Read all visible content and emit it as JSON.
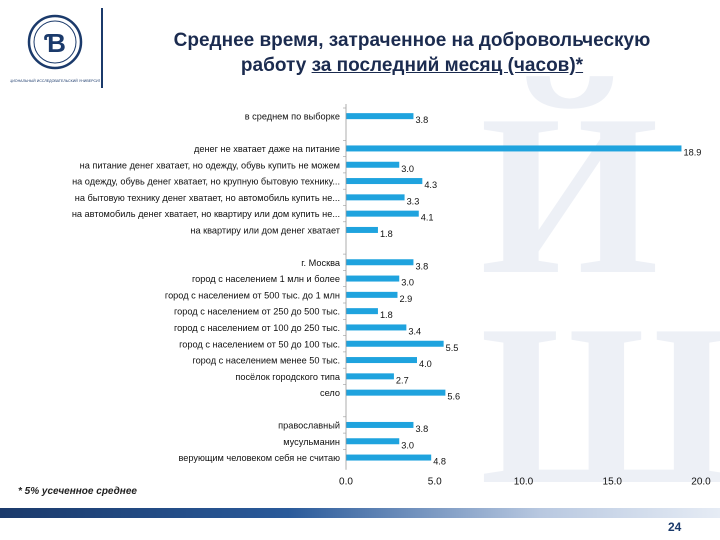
{
  "header": {
    "title_line1": "Среднее время, затраченное на добровольческую",
    "title_line2_plain": "работу ",
    "title_line2_underlined": "за последний месяц (часов)*",
    "logo_text": "НАЦИОНАЛЬНЫЙ ИССЛЕДОВАТЕЛЬСКИЙ УНИВЕРСИТЕТ"
  },
  "footnote": "* 5% усеченное среднее",
  "page_number": "24",
  "colors": {
    "bar": "#1fa3de",
    "title": "#1b2b4f",
    "brand": "#1b3a6b"
  },
  "chart_data": {
    "type": "bar",
    "orientation": "horizontal",
    "xlim": [
      0,
      20
    ],
    "x_ticks": [
      "0.0",
      "5.0",
      "10.0",
      "15.0",
      "20.0"
    ],
    "grid": false,
    "groups": [
      {
        "items": [
          {
            "label": "в среднем по выборке",
            "value": 3.8,
            "value_label": "3.8"
          }
        ]
      },
      {
        "items": [
          {
            "label": "денег не хватает даже на питание",
            "value": 18.9,
            "value_label": "18.9"
          },
          {
            "label": "на питание денег хватает, но одежду, обувь купить не можем",
            "value": 3.0,
            "value_label": "3.0"
          },
          {
            "label": "на одежду, обувь денег хватает, но крупную бытовую технику...",
            "value": 4.3,
            "value_label": "4.3"
          },
          {
            "label": "на бытовую технику денег хватает, но автомобиль купить не...",
            "value": 3.3,
            "value_label": "3.3"
          },
          {
            "label": "на автомобиль денег хватает, но квартиру или дом купить не...",
            "value": 4.1,
            "value_label": "4.1"
          },
          {
            "label": "на квартиру или дом денег хватает",
            "value": 1.8,
            "value_label": "1.8"
          }
        ]
      },
      {
        "items": [
          {
            "label": "г. Москва",
            "value": 3.8,
            "value_label": "3.8"
          },
          {
            "label": "город с населением 1 млн и более",
            "value": 3.0,
            "value_label": "3.0"
          },
          {
            "label": "город с населением от 500 тыс. до 1 млн",
            "value": 2.9,
            "value_label": "2.9"
          },
          {
            "label": "город с населением от 250 до 500 тыс.",
            "value": 1.8,
            "value_label": "1.8"
          },
          {
            "label": "город с населением от 100 до 250 тыс.",
            "value": 3.4,
            "value_label": "3.4"
          },
          {
            "label": "город с населением от 50 до 100 тыс.",
            "value": 5.5,
            "value_label": "5.5"
          },
          {
            "label": "город с населением менее 50 тыс.",
            "value": 4.0,
            "value_label": "4.0"
          },
          {
            "label": "посёлок городского типа",
            "value": 2.7,
            "value_label": "2.7"
          },
          {
            "label": "село",
            "value": 5.6,
            "value_label": "5.6"
          }
        ]
      },
      {
        "items": [
          {
            "label": "православный",
            "value": 3.8,
            "value_label": "3.8"
          },
          {
            "label": "мусульманин",
            "value": 3.0,
            "value_label": "3.0"
          },
          {
            "label": "верующим человеком себя не считаю",
            "value": 4.8,
            "value_label": "4.8"
          }
        ]
      }
    ]
  }
}
